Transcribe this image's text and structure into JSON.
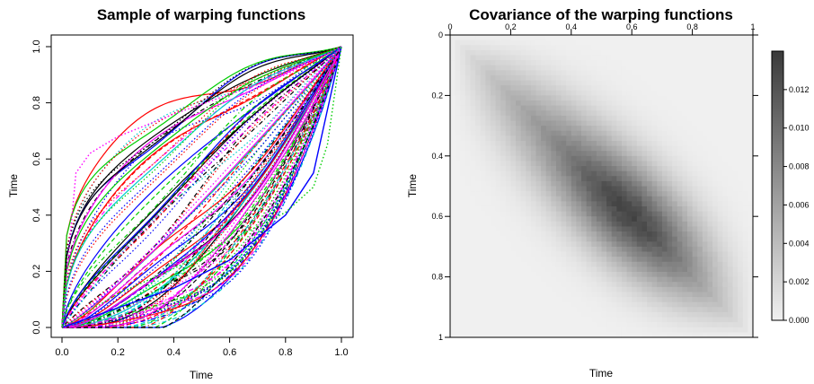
{
  "chart_data": [
    {
      "type": "line",
      "title": "Sample of warping functions",
      "xlabel": "Time",
      "ylabel": "Time",
      "xlim": [
        0,
        1
      ],
      "ylim": [
        0,
        1
      ],
      "x_ticks": [
        "0.0",
        "0.2",
        "0.4",
        "0.6",
        "0.8",
        "1.0"
      ],
      "y_ticks": [
        "0.0",
        "0.2",
        "0.4",
        "0.6",
        "0.8",
        "1.0"
      ],
      "colors": [
        "#000000",
        "#ff0000",
        "#00cd00",
        "#0000ff",
        "#00cdcd",
        "#ff00ff"
      ],
      "line_styles": [
        "solid",
        "dashed",
        "dotted",
        "dotdash"
      ],
      "curve_count": 100,
      "highlighted_curves": [
        {
          "color": "#0000ff",
          "x": [
            0,
            0.2,
            0.4,
            0.6,
            0.8,
            0.9,
            1.0
          ],
          "y": [
            0,
            0.07,
            0.14,
            0.24,
            0.4,
            0.55,
            1.0
          ]
        },
        {
          "color": "#ff00ff",
          "x": [
            0,
            0.05,
            0.1,
            0.2,
            0.4,
            0.6,
            0.8,
            1.0
          ],
          "y": [
            0,
            0.55,
            0.62,
            0.68,
            0.76,
            0.83,
            0.9,
            1.0
          ]
        },
        {
          "color": "#00cd00",
          "x": [
            0,
            0.2,
            0.4,
            0.6,
            0.8,
            0.9,
            0.95,
            1.0
          ],
          "y": [
            0,
            0.12,
            0.21,
            0.31,
            0.41,
            0.5,
            0.65,
            1.0
          ]
        }
      ]
    },
    {
      "type": "heatmap",
      "title": "Covariance of the warping functions",
      "xlabel": "Time",
      "ylabel": "Time",
      "xlim": [
        0,
        1
      ],
      "ylim": [
        0,
        1
      ],
      "x_ticks": [
        "0",
        "0.2",
        "0.4",
        "0.6",
        "0.8",
        "1"
      ],
      "y_ticks": [
        "0",
        "0.2",
        "0.4",
        "0.6",
        "0.8",
        "1"
      ],
      "y_axis_direction": "top-to-bottom",
      "colorbar": {
        "ticks": [
          "0.000",
          "0.002",
          "0.004",
          "0.006",
          "0.008",
          "0.010",
          "0.012"
        ],
        "range": [
          0,
          0.014
        ],
        "low_color": "#f0f0f0",
        "high_color": "#3a3a3a"
      },
      "peak": {
        "x": 0.6,
        "y": 0.6,
        "value": 0.0135
      }
    }
  ]
}
